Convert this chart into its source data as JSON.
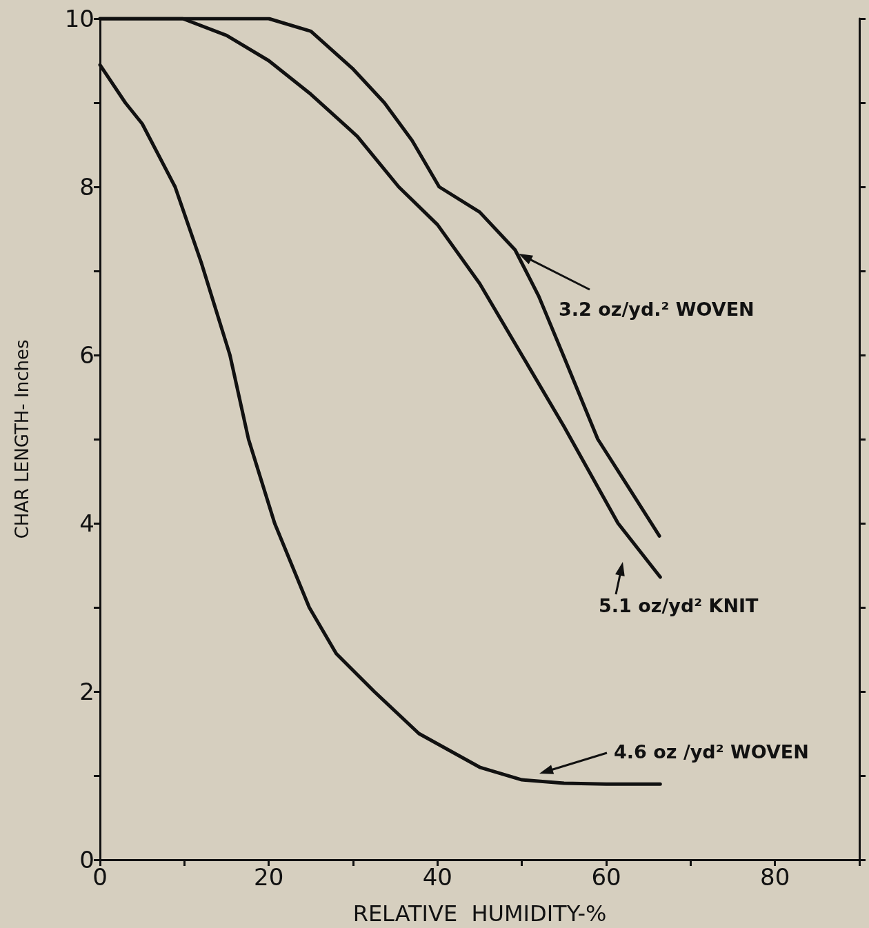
{
  "chart_data": {
    "type": "line",
    "xlabel": "RELATIVE  HUMIDITY-%",
    "ylabel": "CHAR LENGTH- Inches",
    "xlim": [
      0,
      90
    ],
    "ylim": [
      0,
      10
    ],
    "xticks": [
      0,
      {
        "value": 10,
        "label": null
      },
      20,
      {
        "value": 30,
        "label": null
      },
      40,
      {
        "value": 50,
        "label": null
      },
      60,
      {
        "value": 70,
        "label": null
      },
      80,
      {
        "value": 90,
        "label": null
      }
    ],
    "yticks": [
      0,
      {
        "value": 1,
        "label": null
      },
      2,
      {
        "value": 3,
        "label": null
      },
      4,
      {
        "value": 5,
        "label": null
      },
      6,
      {
        "value": 7,
        "label": null
      },
      8,
      {
        "value": 9,
        "label": null
      },
      10
    ],
    "grid": false,
    "marker": "none",
    "line_style": "solid",
    "series": [
      {
        "color": "#111111",
        "x": [
          0,
          10,
          20,
          25,
          30,
          33.7,
          37,
          40.2,
          45,
          49.2,
          52,
          54.9,
          59,
          62.5,
          66.3
        ],
        "values": [
          10,
          10,
          10,
          9.85,
          9.4,
          9,
          8.55,
          8,
          7.7,
          7.25,
          6.7,
          6,
          5,
          4.45,
          3.85
        ]
      },
      {
        "color": "#111111",
        "x": [
          0,
          9.8,
          15,
          20,
          25,
          30.5,
          35.4,
          40,
          45,
          50,
          55,
          61.4,
          66.4
        ],
        "values": [
          10,
          10,
          9.8,
          9.5,
          9.1,
          8.6,
          8,
          7.55,
          6.85,
          6,
          5.15,
          4,
          3.36
        ]
      },
      {
        "color": "#111111",
        "x": [
          0,
          3,
          5,
          8.9,
          12,
          15.4,
          17.6,
          20.7,
          24.8,
          28,
          32.5,
          37.8,
          45,
          50,
          55,
          60,
          66.4
        ],
        "values": [
          9.45,
          9,
          8.75,
          8,
          7.1,
          6,
          5,
          4,
          3,
          2.45,
          2,
          1.5,
          1.1,
          0.95,
          0.91,
          0.9,
          0.9
        ]
      }
    ],
    "annotations": [
      "3.2 oz/yd.² WOVEN",
      "5.1 oz/yd² KNIT",
      "4.6 oz /yd² WOVEN"
    ]
  }
}
